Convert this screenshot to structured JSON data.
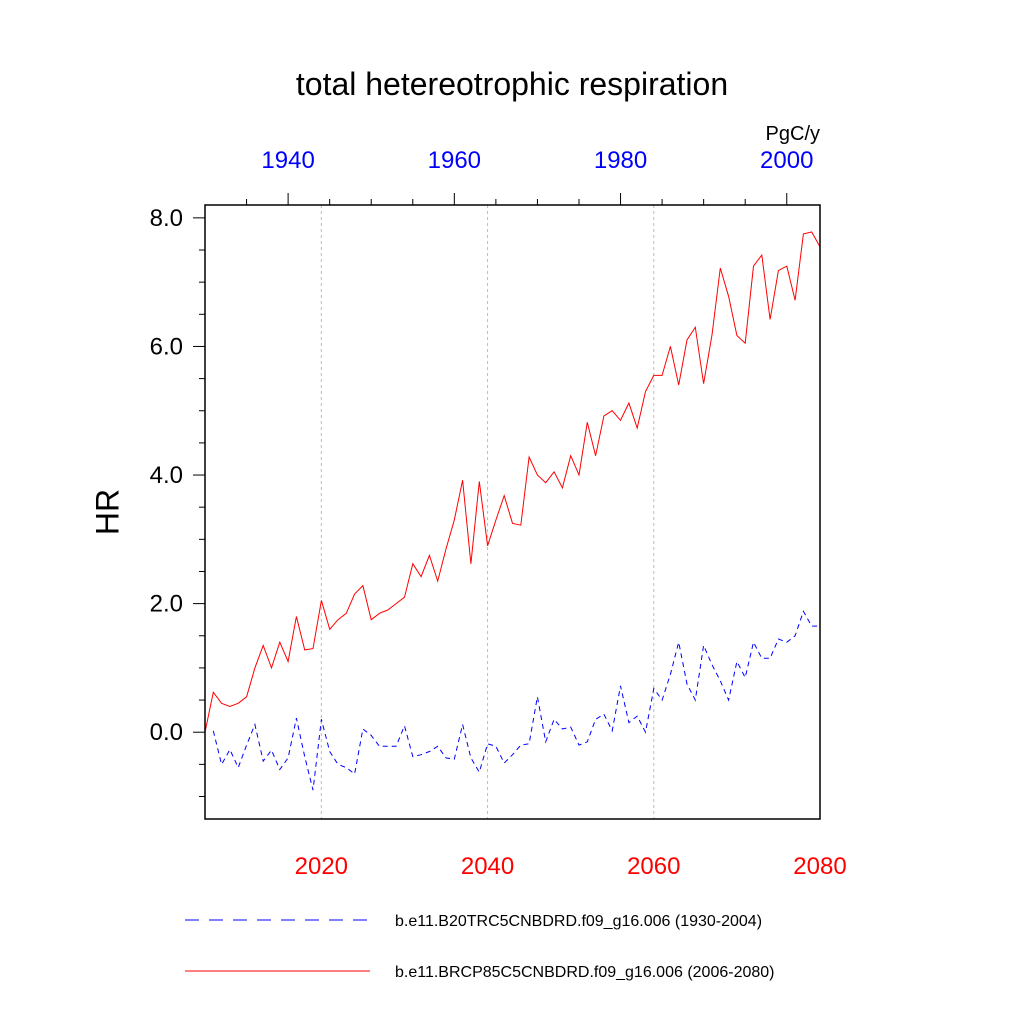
{
  "chart_data": {
    "type": "line",
    "title": "total hetereotrophic respiration",
    "ylabel": "HR",
    "units": "PgC/y",
    "ylim": [
      -1.35,
      8.2
    ],
    "yticks": [
      "8.0",
      "6.0",
      "4.0",
      "2.0",
      "0.0"
    ],
    "ytick_values": [
      8,
      6,
      4,
      2,
      0
    ],
    "bottom_axis": {
      "xlim": [
        2006,
        2080
      ],
      "ticks": [
        "2020",
        "2040",
        "2060",
        "2080"
      ],
      "tick_values": [
        2020,
        2040,
        2060,
        2080
      ],
      "color": "#ff0000"
    },
    "top_axis": {
      "xlim": [
        1930,
        2004
      ],
      "ticks": [
        "1940",
        "1960",
        "1980",
        "2000"
      ],
      "tick_values": [
        1940,
        1960,
        1980,
        2000
      ],
      "color": "#0000ff"
    },
    "grid": "vertical dotted at major bottom ticks",
    "series": [
      {
        "name": "b.e11.B20TRC5CNBDRD.f09_g16.006 (1930-2004)",
        "axis": "top",
        "color": "#0000ff",
        "dash": "dashed",
        "x_start": 1931,
        "values": [
          0.02,
          -0.5,
          -0.27,
          -0.55,
          -0.2,
          0.12,
          -0.45,
          -0.28,
          -0.58,
          -0.4,
          0.22,
          -0.38,
          -0.9,
          0.2,
          -0.3,
          -0.5,
          -0.55,
          -0.65,
          0.05,
          -0.05,
          -0.22,
          -0.22,
          -0.22,
          0.1,
          -0.38,
          -0.35,
          -0.3,
          -0.22,
          -0.4,
          -0.42,
          0.12,
          -0.4,
          -0.62,
          -0.18,
          -0.22,
          -0.48,
          -0.35,
          -0.2,
          -0.18,
          0.55,
          -0.15,
          0.2,
          0.05,
          0.08,
          -0.2,
          -0.15,
          0.2,
          0.28,
          0.02,
          0.72,
          0.15,
          0.25,
          0.0,
          0.68,
          0.5,
          0.9,
          1.4,
          0.75,
          0.5,
          1.35,
          1.05,
          0.8,
          0.5,
          1.1,
          0.85,
          1.4,
          1.15,
          1.15,
          1.45,
          1.4,
          1.5,
          1.88,
          1.65,
          1.65
        ]
      },
      {
        "name": "b.e11.BRCP85C5CNBDRD.f09_g16.006 (2006-2080)",
        "axis": "bottom",
        "color": "#ff0000",
        "dash": "solid",
        "x_start": 2006,
        "values": [
          0.0,
          0.62,
          0.45,
          0.4,
          0.45,
          0.55,
          1.0,
          1.35,
          1.0,
          1.4,
          1.1,
          1.8,
          1.28,
          1.3,
          2.05,
          1.6,
          1.75,
          1.85,
          2.15,
          2.28,
          1.75,
          1.85,
          1.9,
          2.0,
          2.1,
          2.62,
          2.42,
          2.75,
          2.35,
          2.85,
          3.3,
          3.92,
          2.62,
          3.9,
          2.9,
          3.3,
          3.68,
          3.25,
          3.22,
          4.28,
          4.0,
          3.88,
          4.05,
          3.8,
          4.3,
          4.0,
          4.82,
          4.3,
          4.92,
          5.0,
          4.85,
          5.12,
          4.73,
          5.3,
          5.55,
          5.55,
          6.0,
          5.4,
          6.1,
          6.3,
          5.42,
          6.18,
          7.22,
          6.78,
          6.17,
          6.05,
          7.25,
          7.42,
          6.42,
          7.18,
          7.25,
          6.72,
          7.75,
          7.78,
          7.55
        ]
      }
    ]
  }
}
